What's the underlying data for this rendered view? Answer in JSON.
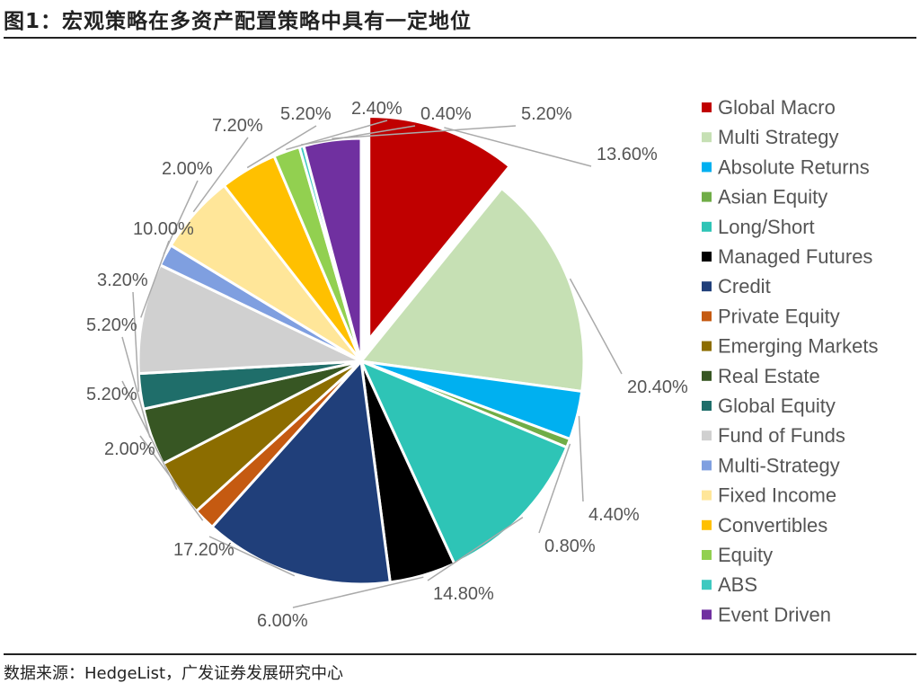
{
  "figure": {
    "title": "图1：宏观策略在多资产配置策略中具有一定地位",
    "source": "数据来源：HedgeList，广发证券发展研究中心"
  },
  "chart_data": {
    "type": "pie",
    "title": "",
    "legend_position": "right",
    "exploded_slice": "Global Macro",
    "slices": [
      {
        "name": "Global Macro",
        "value": 13.6,
        "label": "13.60%",
        "color": "#c00000"
      },
      {
        "name": "Multi Strategy",
        "value": 20.4,
        "label": "20.40%",
        "color": "#c6e0b4"
      },
      {
        "name": "Absolute Returns",
        "value": 4.4,
        "label": "4.40%",
        "color": "#00b0f0"
      },
      {
        "name": "Asian Equity",
        "value": 0.8,
        "label": "0.80%",
        "color": "#70ad47"
      },
      {
        "name": "Long/Short",
        "value": 14.8,
        "label": "14.80%",
        "color": "#2ec4b6"
      },
      {
        "name": "Managed Futures",
        "value": 6.0,
        "label": "6.00%",
        "color": "#000000"
      },
      {
        "name": "Credit",
        "value": 17.2,
        "label": "17.20%",
        "color": "#203f7a"
      },
      {
        "name": "Private Equity",
        "value": 2.0,
        "label": "2.00%",
        "color": "#c55a11"
      },
      {
        "name": "Emerging Markets",
        "value": 5.2,
        "label": "5.20%",
        "color": "#8c6d00"
      },
      {
        "name": "Real Estate",
        "value": 5.2,
        "label": "5.20%",
        "color": "#375623"
      },
      {
        "name": "Global Equity",
        "value": 3.2,
        "label": "3.20%",
        "color": "#1f6e6a"
      },
      {
        "name": "Fund of Funds",
        "value": 10.0,
        "label": "10.00%",
        "color": "#d0d0d0"
      },
      {
        "name": "Multi-Strategy",
        "value": 2.0,
        "label": "2.00%",
        "color": "#7f9fe0"
      },
      {
        "name": "Fixed Income",
        "value": 7.2,
        "label": "7.20%",
        "color": "#ffe699"
      },
      {
        "name": "Convertibles",
        "value": 5.2,
        "label": "5.20%",
        "color": "#ffc000"
      },
      {
        "name": "Equity",
        "value": 2.4,
        "label": "2.40%",
        "color": "#92d050"
      },
      {
        "name": "ABS",
        "value": 0.4,
        "label": "0.40%",
        "color": "#3ec9c0"
      },
      {
        "name": "Event Driven",
        "value": 5.2,
        "label": "5.20%",
        "color": "#7030a0"
      }
    ]
  }
}
